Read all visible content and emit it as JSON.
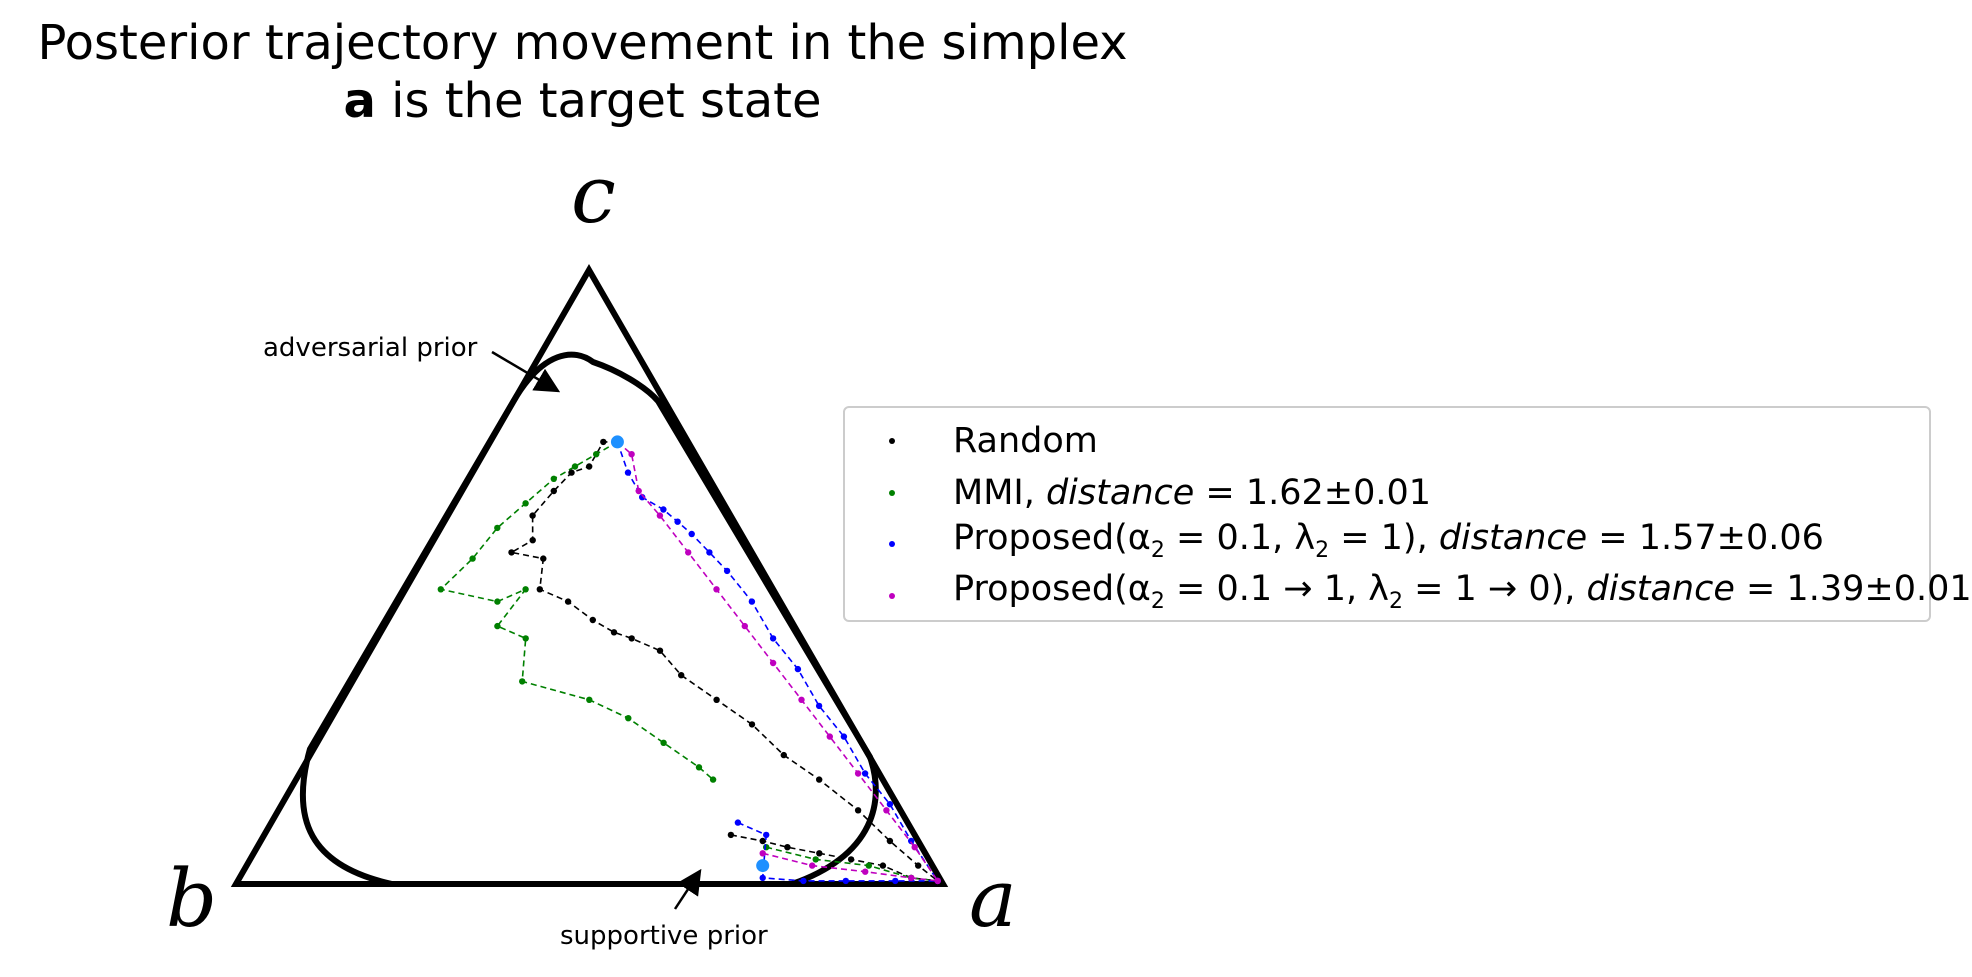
{
  "chart_data": {
    "type": "scatter",
    "title_line1": "Posterior trajectory movement in the simplex",
    "title_bold": "a",
    "title_line2_rest": " is the target state",
    "vertices": {
      "a": "a",
      "b": "b",
      "c": "c"
    },
    "annotations": {
      "adversarial": "adversarial prior",
      "supportive": "supportive prior"
    },
    "legend": [
      {
        "color": "#000000",
        "parts": [
          "Random"
        ]
      },
      {
        "color": "#008000",
        "parts": [
          "MMI, ",
          "distance",
          " = 1.62±0.01"
        ]
      },
      {
        "color": "#0000ff",
        "parts": [
          "Proposed(α",
          "2",
          " = 0.1, λ",
          "2",
          " = 1), ",
          "distance",
          " = 1.57±0.06"
        ]
      },
      {
        "color": "#bf00bf",
        "parts": [
          "Proposed(α",
          "2",
          " = 0.1 → 1, λ",
          "2",
          " = 1 → 0), ",
          "distance",
          " = 1.39±0.01"
        ]
      }
    ],
    "priors": {
      "adversarial": [
        0.18,
        0.1,
        0.72
      ],
      "supportive": [
        0.73,
        0.24,
        0.03
      ]
    },
    "series": [
      {
        "name": "Random",
        "color": "#000000",
        "trajectories": [
          [
            [
              0.18,
              0.1,
              0.72
            ],
            [
              0.16,
              0.12,
              0.72
            ],
            [
              0.16,
              0.16,
              0.68
            ],
            [
              0.14,
              0.19,
              0.67
            ],
            [
              0.13,
              0.23,
              0.64
            ],
            [
              0.12,
              0.28,
              0.6
            ],
            [
              0.14,
              0.3,
              0.56
            ],
            [
              0.12,
              0.34,
              0.54
            ],
            [
              0.17,
              0.3,
              0.53
            ],
            [
              0.19,
              0.33,
              0.48
            ],
            [
              0.24,
              0.3,
              0.46
            ],
            [
              0.29,
              0.28,
              0.43
            ],
            [
              0.33,
              0.26,
              0.41
            ],
            [
              0.36,
              0.24,
              0.4
            ],
            [
              0.41,
              0.21,
              0.38
            ],
            [
              0.46,
              0.2,
              0.34
            ],
            [
              0.53,
              0.17,
              0.3
            ],
            [
              0.6,
              0.14,
              0.26
            ],
            [
              0.67,
              0.12,
              0.21
            ],
            [
              0.74,
              0.09,
              0.17
            ],
            [
              0.82,
              0.06,
              0.12
            ],
            [
              0.89,
              0.04,
              0.07
            ],
            [
              0.95,
              0.02,
              0.03
            ],
            [
              0.99,
              0.005,
              0.005
            ]
          ],
          [
            [
              0.66,
              0.26,
              0.08
            ],
            [
              0.71,
              0.22,
              0.07
            ],
            [
              0.75,
              0.19,
              0.06
            ],
            [
              0.8,
              0.15,
              0.05
            ],
            [
              0.85,
              0.11,
              0.04
            ],
            [
              0.9,
              0.07,
              0.03
            ],
            [
              0.95,
              0.04,
              0.01
            ],
            [
              0.99,
              0.005,
              0.005
            ]
          ]
        ]
      },
      {
        "name": "MMI",
        "color": "#008000",
        "trajectories": [
          [
            [
              0.18,
              0.1,
              0.72
            ],
            [
              0.16,
              0.14,
              0.7
            ],
            [
              0.14,
              0.18,
              0.68
            ],
            [
              0.12,
              0.22,
              0.66
            ],
            [
              0.1,
              0.28,
              0.62
            ],
            [
              0.08,
              0.34,
              0.58
            ],
            [
              0.07,
              0.4,
              0.53
            ],
            [
              0.05,
              0.47,
              0.48
            ],
            [
              0.14,
              0.4,
              0.46
            ],
            [
              0.17,
              0.35,
              0.48
            ],
            [
              0.16,
              0.42,
              0.42
            ],
            [
              0.21,
              0.39,
              0.4
            ],
            [
              0.24,
              0.43,
              0.33
            ],
            [
              0.35,
              0.35,
              0.3
            ],
            [
              0.42,
              0.31,
              0.27
            ],
            [
              0.49,
              0.28,
              0.23
            ],
            [
              0.56,
              0.25,
              0.19
            ],
            [
              0.59,
              0.24,
              0.17
            ]
          ],
          [
            [
              0.72,
              0.22,
              0.06
            ],
            [
              0.8,
              0.16,
              0.04
            ],
            [
              0.88,
              0.09,
              0.03
            ],
            [
              0.95,
              0.04,
              0.01
            ],
            [
              0.99,
              0.005,
              0.005
            ]
          ]
        ]
      },
      {
        "name": "Proposed(α2 = 0.1, λ2 = 1)",
        "color": "#0000ff",
        "trajectories": [
          [
            [
              0.18,
              0.1,
              0.72
            ],
            [
              0.22,
              0.11,
              0.67
            ],
            [
              0.26,
              0.11,
              0.63
            ],
            [
              0.3,
              0.09,
              0.61
            ],
            [
              0.33,
              0.08,
              0.59
            ],
            [
              0.36,
              0.07,
              0.57
            ],
            [
              0.4,
              0.06,
              0.54
            ],
            [
              0.44,
              0.05,
              0.51
            ],
            [
              0.5,
              0.04,
              0.46
            ],
            [
              0.56,
              0.04,
              0.4
            ],
            [
              0.62,
              0.03,
              0.35
            ],
            [
              0.68,
              0.03,
              0.29
            ],
            [
              0.74,
              0.02,
              0.24
            ],
            [
              0.8,
              0.02,
              0.18
            ],
            [
              0.86,
              0.01,
              0.13
            ],
            [
              0.92,
              0.01,
              0.07
            ],
            [
              0.99,
              0.005,
              0.005
            ]
          ],
          [
            [
              0.66,
              0.24,
              0.1
            ],
            [
              0.71,
              0.21,
              0.08
            ],
            [
              0.74,
              0.25,
              0.01
            ],
            [
              0.8,
              0.195,
              0.005
            ],
            [
              0.86,
              0.135,
              0.005
            ],
            [
              0.93,
              0.065,
              0.005
            ],
            [
              0.99,
              0.005,
              0.005
            ]
          ]
        ]
      },
      {
        "name": "Proposed(α2 = 0.1 → 1, λ2 = 1 → 0)",
        "color": "#bf00bf",
        "trajectories": [
          [
            [
              0.18,
              0.1,
              0.72
            ],
            [
              0.21,
              0.09,
              0.7
            ],
            [
              0.25,
              0.11,
              0.64
            ],
            [
              0.3,
              0.1,
              0.6
            ],
            [
              0.37,
              0.09,
              0.54
            ],
            [
              0.44,
              0.08,
              0.48
            ],
            [
              0.51,
              0.07,
              0.42
            ],
            [
              0.58,
              0.06,
              0.36
            ],
            [
              0.65,
              0.05,
              0.3
            ],
            [
              0.72,
              0.04,
              0.24
            ],
            [
              0.79,
              0.03,
              0.18
            ],
            [
              0.86,
              0.02,
              0.12
            ],
            [
              0.93,
              0.01,
              0.06
            ],
            [
              0.99,
              0.005,
              0.005
            ]
          ],
          [
            [
              0.72,
              0.23,
              0.05
            ],
            [
              0.8,
              0.17,
              0.03
            ],
            [
              0.88,
              0.1,
              0.02
            ],
            [
              0.95,
              0.04,
              0.01
            ],
            [
              0.99,
              0.005,
              0.005
            ]
          ]
        ]
      }
    ]
  }
}
